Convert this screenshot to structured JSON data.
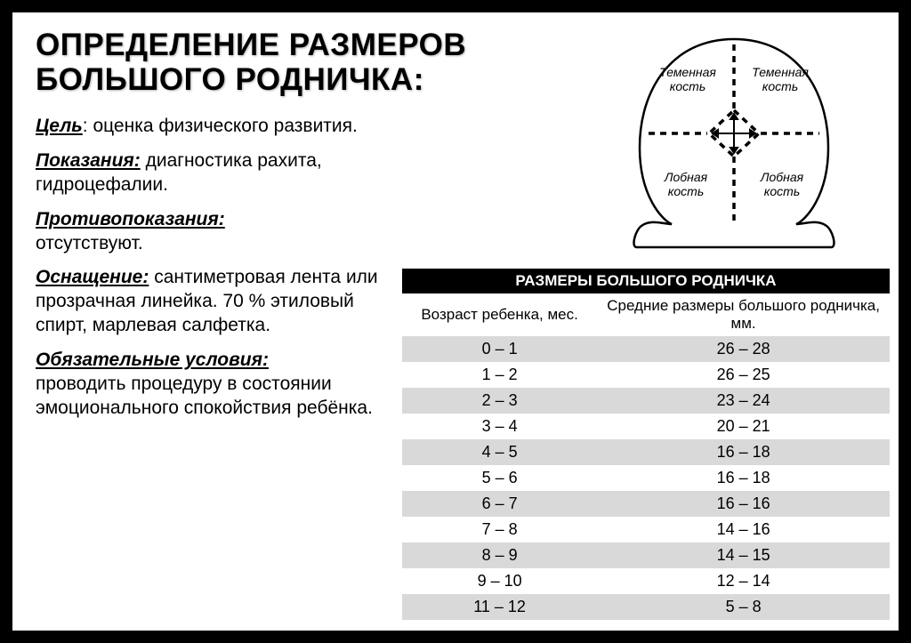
{
  "title_line1": "ОПРЕДЕЛЕНИЕ РАЗМЕРОВ",
  "title_line2": "БОЛЬШОГО РОДНИЧКА:",
  "sections": {
    "goal_label": "Цель",
    "goal_text": ": оценка физического развития.",
    "indications_label": "Показания:",
    "indications_text": " диагностика рахита, гидроцефалии.",
    "contra_label": "Противопоказания:",
    "contra_text": "отсутствуют.",
    "equip_label": "Оснащение:",
    "equip_text": " сантиметровая лента или прозрачная линейка. 70 % этиловый спирт, марлевая салфетка.",
    "conditions_label": "Обязательные условия:",
    "conditions_text": "проводить процедуру в состоянии эмоционального спокойствия ребёнка."
  },
  "diagram": {
    "label_tl": "Теменная",
    "label_tl2": "кость",
    "label_tr": "Теменная",
    "label_tr2": "кость",
    "label_bl": "Лобная",
    "label_bl2": "кость",
    "label_br": "Лобная",
    "label_br2": "кость",
    "stroke_color": "#000000",
    "dash": "6,5"
  },
  "table": {
    "title": "РАЗМЕРЫ БОЛЬШОГО РОДНИЧКА",
    "col1": "Возраст ребенка, мес.",
    "col2": "Средние размеры большого родничка, мм.",
    "header_bg": "#000000",
    "header_color": "#ffffff",
    "row_alt_bg": "#d9d9d9",
    "row_bg": "#ffffff",
    "text_color": "#000000",
    "font_size": 18,
    "rows": [
      {
        "age": "0 – 1",
        "size": "26 – 28"
      },
      {
        "age": "1 – 2",
        "size": "26 – 25"
      },
      {
        "age": "2 – 3",
        "size": "23 – 24"
      },
      {
        "age": "3 – 4",
        "size": "20 – 21"
      },
      {
        "age": "4 – 5",
        "size": "16 – 18"
      },
      {
        "age": "5 – 6",
        "size": "16 – 18"
      },
      {
        "age": "6 – 7",
        "size": "16 – 16"
      },
      {
        "age": "7 – 8",
        "size": "14 – 16"
      },
      {
        "age": "8 – 9",
        "size": "14 – 15"
      },
      {
        "age": "9 – 10",
        "size": "12 – 14"
      },
      {
        "age": "11 – 12",
        "size": "5 – 8"
      }
    ]
  },
  "colors": {
    "page_bg": "#000000",
    "slide_bg": "#ffffff",
    "text": "#000000"
  }
}
